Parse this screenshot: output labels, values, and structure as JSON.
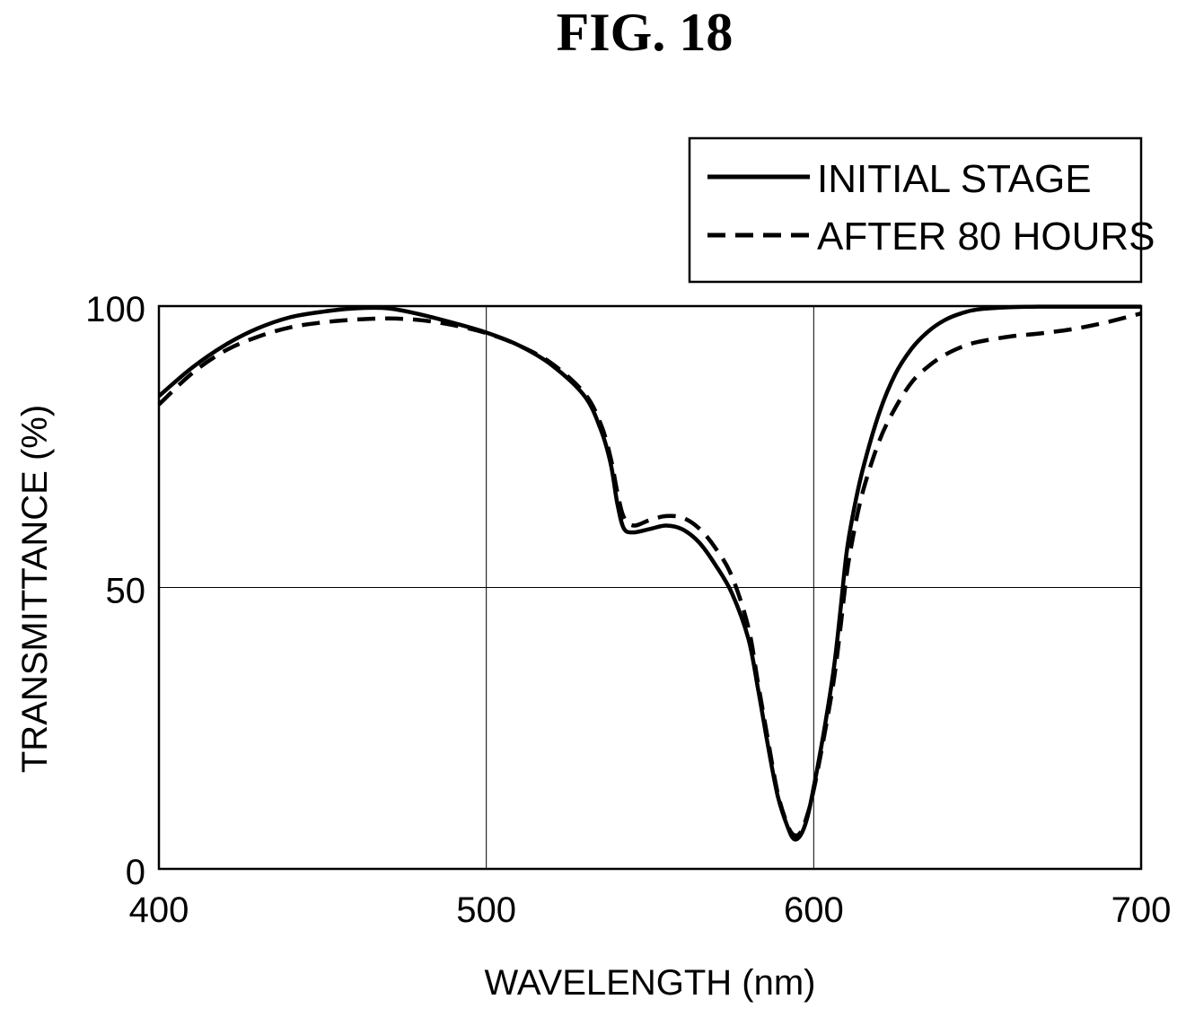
{
  "figure": {
    "title": "FIG. 18"
  },
  "chart_data": {
    "type": "line",
    "xlabel": "WAVELENGTH (nm)",
    "ylabel": "TRANSMITTANCE (%)",
    "xlim": [
      400,
      700
    ],
    "ylim": [
      0,
      100
    ],
    "xticks": [
      400,
      500,
      600,
      700
    ],
    "yticks": [
      0,
      50,
      100
    ],
    "grid": true,
    "legend_position": "top-right",
    "series": [
      {
        "name": "INITIAL STAGE",
        "style": "solid",
        "color": "#000000",
        "points": [
          [
            400,
            84
          ],
          [
            410,
            89
          ],
          [
            420,
            93
          ],
          [
            430,
            96
          ],
          [
            440,
            98
          ],
          [
            450,
            99
          ],
          [
            460,
            99.6
          ],
          [
            470,
            99.6
          ],
          [
            480,
            98.5
          ],
          [
            490,
            97
          ],
          [
            500,
            95.3
          ],
          [
            510,
            93
          ],
          [
            520,
            89.5
          ],
          [
            530,
            84
          ],
          [
            535,
            78
          ],
          [
            538,
            72
          ],
          [
            540,
            65
          ],
          [
            542,
            60.5
          ],
          [
            545,
            59.8
          ],
          [
            550,
            60.4
          ],
          [
            555,
            61
          ],
          [
            560,
            60.3
          ],
          [
            565,
            58
          ],
          [
            570,
            54
          ],
          [
            575,
            49
          ],
          [
            580,
            41
          ],
          [
            583,
            32
          ],
          [
            586,
            22
          ],
          [
            589,
            13
          ],
          [
            592,
            7.5
          ],
          [
            594,
            5.3
          ],
          [
            596,
            6
          ],
          [
            598,
            9
          ],
          [
            600,
            14.5
          ],
          [
            603,
            24
          ],
          [
            606,
            35
          ],
          [
            608,
            45
          ],
          [
            610,
            56
          ],
          [
            612,
            63
          ],
          [
            615,
            71
          ],
          [
            620,
            81
          ],
          [
            625,
            88
          ],
          [
            630,
            92.5
          ],
          [
            635,
            95.5
          ],
          [
            640,
            97.5
          ],
          [
            645,
            98.7
          ],
          [
            650,
            99.4
          ],
          [
            660,
            99.8
          ],
          [
            670,
            99.9
          ],
          [
            680,
            99.9
          ],
          [
            690,
            99.9
          ],
          [
            700,
            99.9
          ]
        ]
      },
      {
        "name": "AFTER 80 HOURS",
        "style": "dashed",
        "color": "#000000",
        "points": [
          [
            400,
            82.5
          ],
          [
            410,
            88
          ],
          [
            420,
            92
          ],
          [
            430,
            94.5
          ],
          [
            440,
            96.2
          ],
          [
            450,
            97.1
          ],
          [
            460,
            97.6
          ],
          [
            470,
            97.8
          ],
          [
            480,
            97.5
          ],
          [
            490,
            96.6
          ],
          [
            500,
            95.2
          ],
          [
            510,
            93
          ],
          [
            520,
            89.8
          ],
          [
            530,
            84.5
          ],
          [
            535,
            79
          ],
          [
            538,
            73
          ],
          [
            540,
            67
          ],
          [
            542,
            62.5
          ],
          [
            545,
            61
          ],
          [
            550,
            62
          ],
          [
            555,
            62.7
          ],
          [
            560,
            62.4
          ],
          [
            565,
            60.5
          ],
          [
            570,
            57
          ],
          [
            575,
            52
          ],
          [
            580,
            43
          ],
          [
            583,
            33
          ],
          [
            586,
            23
          ],
          [
            589,
            13.5
          ],
          [
            592,
            7.8
          ],
          [
            594,
            6
          ],
          [
            596,
            6.5
          ],
          [
            598,
            9.5
          ],
          [
            600,
            14
          ],
          [
            603,
            23
          ],
          [
            606,
            33
          ],
          [
            608,
            42
          ],
          [
            610,
            52
          ],
          [
            612,
            59
          ],
          [
            615,
            67
          ],
          [
            620,
            76
          ],
          [
            625,
            82
          ],
          [
            630,
            86.5
          ],
          [
            635,
            89.3
          ],
          [
            640,
            91.3
          ],
          [
            645,
            92.7
          ],
          [
            650,
            93.6
          ],
          [
            660,
            94.6
          ],
          [
            670,
            95.2
          ],
          [
            680,
            96
          ],
          [
            690,
            97.2
          ],
          [
            700,
            98.7
          ]
        ]
      }
    ]
  }
}
